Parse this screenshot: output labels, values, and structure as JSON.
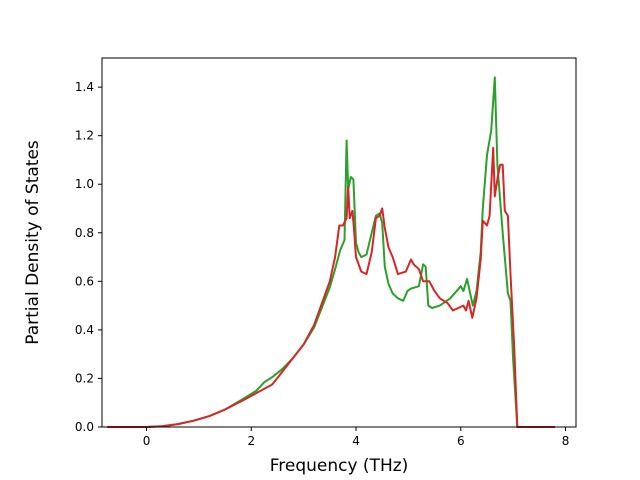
{
  "chart_data": {
    "type": "line",
    "title": "",
    "xlabel": "Frequency (THz)",
    "ylabel": "Partial Density of States",
    "xlim": [
      -0.85,
      8.2
    ],
    "ylim": [
      0.0,
      1.52
    ],
    "xticks": [
      0,
      2,
      4,
      6,
      8
    ],
    "xtick_labels": [
      "0",
      "2",
      "4",
      "6",
      "8"
    ],
    "yticks": [
      0.0,
      0.2,
      0.4,
      0.6,
      0.8,
      1.0,
      1.2,
      1.4
    ],
    "ytick_labels": [
      "0.0",
      "0.2",
      "0.4",
      "0.6",
      "0.8",
      "1.0",
      "1.2",
      "1.4"
    ],
    "grid": false,
    "legend": "none",
    "series": [
      {
        "color": "#2ca02c",
        "points": [
          [
            -0.75,
            0.0
          ],
          [
            0.0,
            0.0
          ],
          [
            0.3,
            0.003
          ],
          [
            0.6,
            0.012
          ],
          [
            0.9,
            0.026
          ],
          [
            1.2,
            0.045
          ],
          [
            1.5,
            0.072
          ],
          [
            1.8,
            0.11
          ],
          [
            2.1,
            0.15
          ],
          [
            2.25,
            0.185
          ],
          [
            2.4,
            0.205
          ],
          [
            2.6,
            0.24
          ],
          [
            2.8,
            0.285
          ],
          [
            3.0,
            0.34
          ],
          [
            3.2,
            0.41
          ],
          [
            3.4,
            0.52
          ],
          [
            3.5,
            0.575
          ],
          [
            3.6,
            0.65
          ],
          [
            3.7,
            0.73
          ],
          [
            3.78,
            0.77
          ],
          [
            3.82,
            1.18
          ],
          [
            3.85,
            0.98
          ],
          [
            3.9,
            1.03
          ],
          [
            3.95,
            1.02
          ],
          [
            4.0,
            0.76
          ],
          [
            4.05,
            0.72
          ],
          [
            4.1,
            0.7
          ],
          [
            4.2,
            0.71
          ],
          [
            4.3,
            0.8
          ],
          [
            4.38,
            0.87
          ],
          [
            4.45,
            0.88
          ],
          [
            4.5,
            0.84
          ],
          [
            4.55,
            0.66
          ],
          [
            4.62,
            0.59
          ],
          [
            4.7,
            0.55
          ],
          [
            4.8,
            0.53
          ],
          [
            4.9,
            0.52
          ],
          [
            4.98,
            0.56
          ],
          [
            5.05,
            0.57
          ],
          [
            5.2,
            0.58
          ],
          [
            5.28,
            0.67
          ],
          [
            5.33,
            0.66
          ],
          [
            5.38,
            0.5
          ],
          [
            5.45,
            0.49
          ],
          [
            5.6,
            0.5
          ],
          [
            5.8,
            0.53
          ],
          [
            6.0,
            0.58
          ],
          [
            6.05,
            0.56
          ],
          [
            6.12,
            0.61
          ],
          [
            6.18,
            0.55
          ],
          [
            6.23,
            0.5
          ],
          [
            6.3,
            0.56
          ],
          [
            6.38,
            0.72
          ],
          [
            6.42,
            0.9
          ],
          [
            6.5,
            1.12
          ],
          [
            6.58,
            1.22
          ],
          [
            6.65,
            1.44
          ],
          [
            6.7,
            1.08
          ],
          [
            6.8,
            0.8
          ],
          [
            6.9,
            0.55
          ],
          [
            6.95,
            0.52
          ],
          [
            7.0,
            0.28
          ],
          [
            7.08,
            0.0
          ],
          [
            7.8,
            0.0
          ]
        ]
      },
      {
        "color": "#d62728",
        "points": [
          [
            -0.75,
            0.0
          ],
          [
            0.0,
            0.0
          ],
          [
            0.3,
            0.003
          ],
          [
            0.6,
            0.012
          ],
          [
            0.9,
            0.026
          ],
          [
            1.2,
            0.045
          ],
          [
            1.5,
            0.072
          ],
          [
            1.8,
            0.105
          ],
          [
            2.1,
            0.14
          ],
          [
            2.4,
            0.175
          ],
          [
            2.6,
            0.23
          ],
          [
            2.8,
            0.285
          ],
          [
            3.0,
            0.34
          ],
          [
            3.2,
            0.42
          ],
          [
            3.4,
            0.54
          ],
          [
            3.5,
            0.6
          ],
          [
            3.6,
            0.7
          ],
          [
            3.68,
            0.83
          ],
          [
            3.75,
            0.83
          ],
          [
            3.82,
            0.86
          ],
          [
            3.85,
            0.99
          ],
          [
            3.88,
            0.86
          ],
          [
            3.93,
            0.89
          ],
          [
            3.96,
            0.82
          ],
          [
            4.0,
            0.7
          ],
          [
            4.1,
            0.64
          ],
          [
            4.2,
            0.63
          ],
          [
            4.3,
            0.72
          ],
          [
            4.38,
            0.86
          ],
          [
            4.45,
            0.87
          ],
          [
            4.5,
            0.9
          ],
          [
            4.55,
            0.82
          ],
          [
            4.62,
            0.74
          ],
          [
            4.7,
            0.7
          ],
          [
            4.8,
            0.63
          ],
          [
            4.95,
            0.64
          ],
          [
            5.05,
            0.69
          ],
          [
            5.1,
            0.67
          ],
          [
            5.2,
            0.65
          ],
          [
            5.28,
            0.6
          ],
          [
            5.4,
            0.6
          ],
          [
            5.5,
            0.56
          ],
          [
            5.6,
            0.53
          ],
          [
            5.75,
            0.51
          ],
          [
            5.85,
            0.48
          ],
          [
            5.95,
            0.49
          ],
          [
            6.05,
            0.5
          ],
          [
            6.1,
            0.48
          ],
          [
            6.15,
            0.52
          ],
          [
            6.22,
            0.45
          ],
          [
            6.3,
            0.53
          ],
          [
            6.38,
            0.69
          ],
          [
            6.42,
            0.85
          ],
          [
            6.5,
            0.83
          ],
          [
            6.55,
            0.87
          ],
          [
            6.62,
            1.15
          ],
          [
            6.65,
            0.95
          ],
          [
            6.7,
            1.02
          ],
          [
            6.75,
            1.08
          ],
          [
            6.8,
            1.08
          ],
          [
            6.84,
            0.89
          ],
          [
            6.9,
            0.87
          ],
          [
            6.95,
            0.63
          ],
          [
            7.02,
            0.33
          ],
          [
            7.08,
            0.0
          ],
          [
            7.8,
            0.0
          ]
        ]
      }
    ]
  }
}
